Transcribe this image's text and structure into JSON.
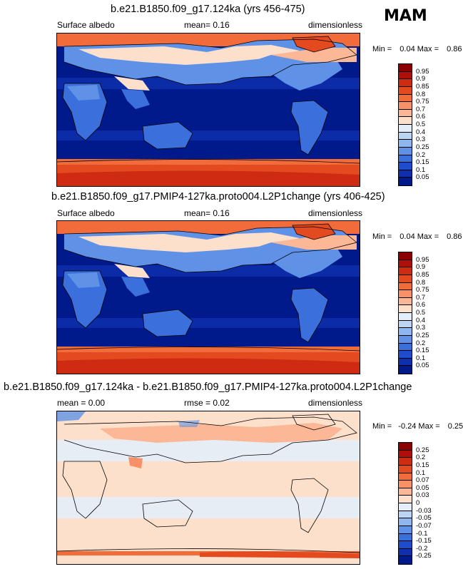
{
  "season": "MAM",
  "panels": [
    {
      "title": "b.e21.B1850.f09_g17.124ka (yrs 456-475)",
      "left_label": "Surface albedo",
      "center_label": "mean=  0.16",
      "right_label": "dimensionless",
      "min_label": "Min =",
      "min_value": "0.04",
      "max_label": "Max =",
      "max_value": "0.86",
      "colorbar_labels": [
        "0.95",
        "0.9",
        "0.85",
        "0.8",
        "0.75",
        "0.7",
        "0.6",
        "0.5",
        "0.4",
        "0.3",
        "0.25",
        "0.2",
        "0.15",
        "0.1",
        "0.05"
      ],
      "colorbar_colors": [
        "#8b0000",
        "#b00e0a",
        "#cf2a12",
        "#e44a1f",
        "#f26b3a",
        "#f89167",
        "#fcb896",
        "#fde0cc",
        "#e3eefa",
        "#bcd5f5",
        "#8eb6ef",
        "#5f92e6",
        "#3a6fdc",
        "#1f4ccc",
        "#0f2fae",
        "#001a8c"
      ]
    },
    {
      "title": "b.e21.B1850.f09_g17.PMIP4-127ka.proto004.L2P1change (yrs 406-425)",
      "left_label": "Surface albedo",
      "center_label": "mean=  0.16",
      "right_label": "dimensionless",
      "min_label": "Min =",
      "min_value": "0.04",
      "max_label": "Max =",
      "max_value": "0.86",
      "colorbar_labels": [
        "0.95",
        "0.9",
        "0.85",
        "0.8",
        "0.75",
        "0.7",
        "0.6",
        "0.5",
        "0.4",
        "0.3",
        "0.25",
        "0.2",
        "0.15",
        "0.1",
        "0.05"
      ],
      "colorbar_colors": [
        "#8b0000",
        "#b00e0a",
        "#cf2a12",
        "#e44a1f",
        "#f26b3a",
        "#f89167",
        "#fcb896",
        "#fde0cc",
        "#e3eefa",
        "#bcd5f5",
        "#8eb6ef",
        "#5f92e6",
        "#3a6fdc",
        "#1f4ccc",
        "#0f2fae",
        "#001a8c"
      ]
    },
    {
      "title": "b.e21.B1850.f09_g17.124ka - b.e21.B1850.f09_g17.PMIP4-127ka.proto004.L2P1change",
      "left_label": "mean =  0.00",
      "center_label": "rmse =  0.02",
      "right_label": "dimensionless",
      "min_label": "Min =",
      "min_value": "-0.24",
      "max_label": "Max =",
      "max_value": "0.25",
      "colorbar_labels": [
        "0.25",
        "0.2",
        "0.15",
        "0.1",
        "0.07",
        "0.05",
        "0.03",
        "0",
        "-0.03",
        "-0.05",
        "-0.07",
        "-0.1",
        "-0.15",
        "-0.2",
        "-0.25"
      ],
      "colorbar_colors": [
        "#8b0000",
        "#b00e0a",
        "#cf2a12",
        "#e44a1f",
        "#f26b3a",
        "#f89167",
        "#fcb896",
        "#fde0cc",
        "#e3eefa",
        "#bcd5f5",
        "#8eb6ef",
        "#5f92e6",
        "#3a6fdc",
        "#1f4ccc",
        "#0f2fae",
        "#001a8c"
      ]
    }
  ],
  "chart_data": [
    {
      "type": "heatmap",
      "title": "b.e21.B1850.f09_g17.124ka (yrs 456-475)",
      "variable": "Surface albedo",
      "units": "dimensionless",
      "mean": 0.16,
      "min": 0.04,
      "max": 0.86,
      "levels": [
        0.05,
        0.1,
        0.15,
        0.2,
        0.25,
        0.3,
        0.4,
        0.5,
        0.6,
        0.7,
        0.75,
        0.8,
        0.85,
        0.9,
        0.95
      ]
    },
    {
      "type": "heatmap",
      "title": "b.e21.B1850.f09_g17.PMIP4-127ka.proto004.L2P1change (yrs 406-425)",
      "variable": "Surface albedo",
      "units": "dimensionless",
      "mean": 0.16,
      "min": 0.04,
      "max": 0.86,
      "levels": [
        0.05,
        0.1,
        0.15,
        0.2,
        0.25,
        0.3,
        0.4,
        0.5,
        0.6,
        0.7,
        0.75,
        0.8,
        0.85,
        0.9,
        0.95
      ]
    },
    {
      "type": "heatmap",
      "title": "b.e21.B1850.f09_g17.124ka - b.e21.B1850.f09_g17.PMIP4-127ka.proto004.L2P1change",
      "units": "dimensionless",
      "mean": 0.0,
      "rmse": 0.02,
      "min": -0.24,
      "max": 0.25,
      "levels": [
        -0.25,
        -0.2,
        -0.15,
        -0.1,
        -0.07,
        -0.05,
        -0.03,
        0,
        0.03,
        0.05,
        0.07,
        0.1,
        0.15,
        0.2,
        0.25
      ]
    }
  ]
}
